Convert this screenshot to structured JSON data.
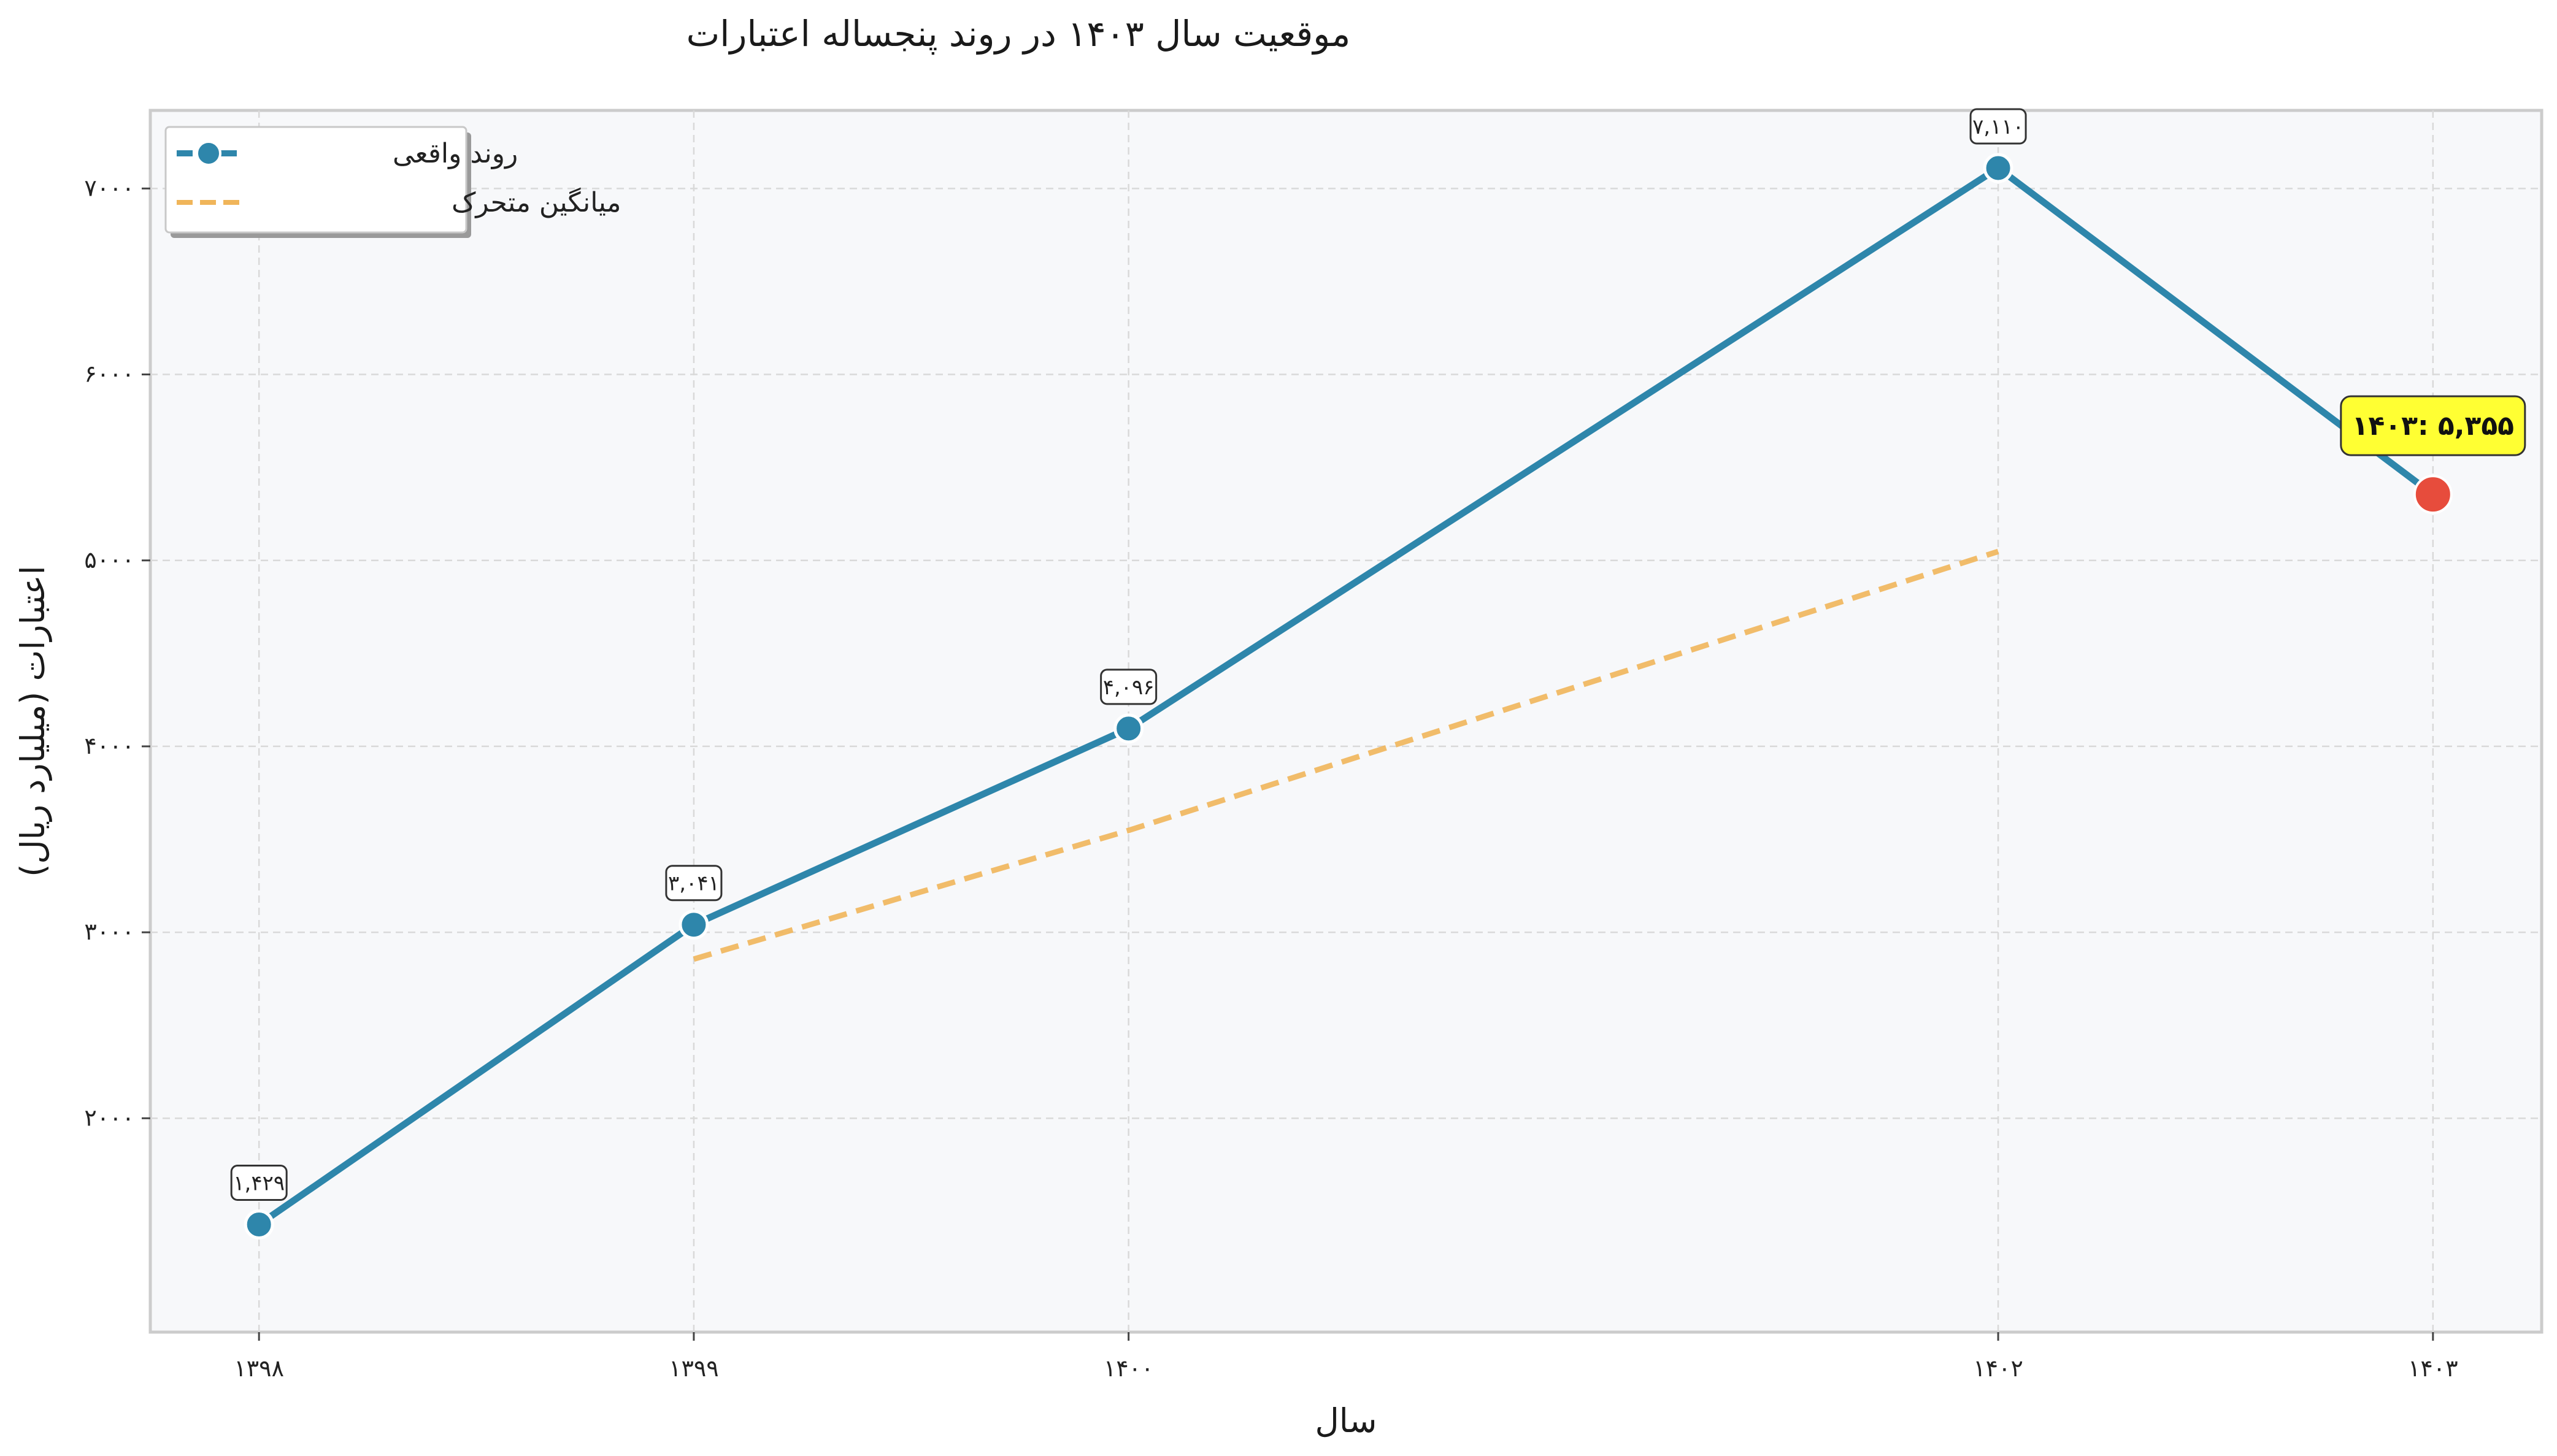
{
  "chart_data": {
    "type": "line",
    "title": "موقعیت سال ۱۴۰۳ در روند پنجساله اعتبارات",
    "xlabel": "سال",
    "ylabel": "اعتبارات (میلیارد ریال)",
    "x": [
      1398,
      1399,
      1400,
      1402,
      1403
    ],
    "x_tick_labels": [
      "۱۳۹۸",
      "۱۳۹۹",
      "۱۴۰۰",
      "۱۴۰۲",
      "۱۴۰۳"
    ],
    "y_ticks": [
      2000,
      3000,
      4000,
      5000,
      6000,
      7000
    ],
    "y_tick_labels": [
      "۲۰۰۰",
      "۳۰۰۰",
      "۴۰۰۰",
      "۵۰۰۰",
      "۶۰۰۰",
      "۷۰۰۰"
    ],
    "xlim": [
      1397.75,
      1403.25
    ],
    "ylim": [
      850,
      7420
    ],
    "grid": true,
    "legend_position": "top-left",
    "series": [
      {
        "name": "روند واقعی",
        "x": [
          1398,
          1399,
          1400,
          1402,
          1403
        ],
        "values": [
          1429,
          3041,
          4096,
          7110,
          5355
        ],
        "data_labels": [
          "۱,۴۲۹",
          "۳,۰۴۱",
          "۴,۰۹۶",
          "۷,۱۱۰",
          ""
        ],
        "color": "#2e86ab",
        "style": "solid"
      },
      {
        "name": "میانگین متحرک",
        "x": [
          1399,
          1400,
          1402
        ],
        "values": [
          2856,
          3548,
          5048
        ],
        "color": "#f0b55a",
        "style": "dashed"
      }
    ],
    "highlight": {
      "x": 1403,
      "value": 5355,
      "label": "۱۴۰۳: ۵,۳۵۵",
      "marker_color": "#e74c3c",
      "box_color": "#ffff33"
    }
  }
}
